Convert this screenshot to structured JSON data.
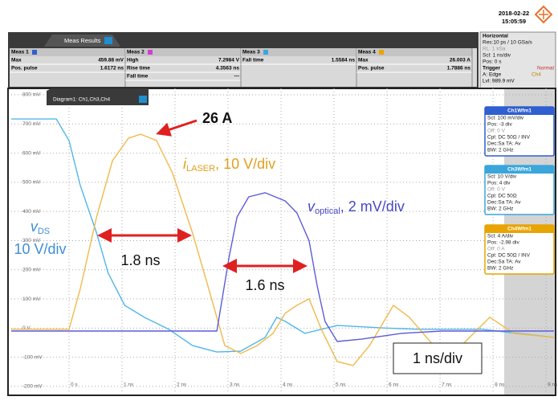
{
  "header": {
    "date": "2018-02-22",
    "time": "15:05:59"
  },
  "meas_results": {
    "tab": "Meas Results",
    "columns": [
      {
        "title": "Meas 1",
        "rows": [
          [
            "Max",
            "459.88 mV"
          ],
          [
            "Pos. pulse",
            "1.6172 ns"
          ]
        ]
      },
      {
        "title": "Meas 2",
        "rows": [
          [
            "High",
            "7.2984 V"
          ],
          [
            "Rise time",
            "4.3563 ns"
          ],
          [
            "Fall time",
            "---"
          ]
        ]
      },
      {
        "title": "Meas 3",
        "rows": [
          [
            "Fall time",
            "1.5584 ns"
          ]
        ]
      },
      {
        "title": "Meas 4",
        "rows": [
          [
            "Max",
            "26.003 A"
          ],
          [
            "Pos. pulse",
            "1.7886 ns"
          ]
        ]
      }
    ]
  },
  "horizontal": {
    "title": "Horizontal",
    "lines": [
      "Res:10 ps / 10 GSa/s",
      "RL: 1 kSa",
      "Scl: 1 ns/div",
      "Pos: 0 s"
    ],
    "trigger": "Trigger",
    "mode": "Normal",
    "edge": "A:  Edge",
    "source": "Ch4",
    "level": "Lvl: 989.9 mV"
  },
  "diagram_tab": "Diagram1: Ch1,Ch3,Ch4",
  "channels": [
    {
      "title": "Ch1Wfm1",
      "color": "#2f5fd0",
      "lines": [
        "Scl: 100 mV/div",
        "Pos: -3 div",
        "Off: 0 V",
        "Cpl: DC 50Ω / INV",
        "Dec:Sa    TA: Av",
        "BW: 2 GHz"
      ]
    },
    {
      "title": "Ch3Wfm1",
      "color": "#3aa6dc",
      "lines": [
        "Scl: 10 V/div",
        "Pos: 4 div",
        "Off: 0 V",
        "Cpl: DC 50Ω",
        "Dec:Sa    TA: Av",
        "BW: 2 GHz"
      ]
    },
    {
      "title": "Ch4Wfm1",
      "color": "#e8a400",
      "lines": [
        "Scl: 4 A/div",
        "Pos: -2.98 div",
        "Off: 0 A",
        "Cpl: DC 50Ω / INV",
        "Dec:Sa    TA: Av",
        "BW: 2 GHz"
      ]
    }
  ],
  "chart_data": {
    "type": "line",
    "xlim": [
      -1.09,
      9.15
    ],
    "ylim": [
      -225,
      822
    ],
    "xticks": [
      {
        "value": 0,
        "label": "0 s"
      },
      {
        "value": 1,
        "label": "1 ns"
      },
      {
        "value": 2,
        "label": "2 ns"
      },
      {
        "value": 3,
        "label": "3 ns"
      },
      {
        "value": 4,
        "label": "4 ns"
      },
      {
        "value": 5,
        "label": "5 ns"
      },
      {
        "value": 6,
        "label": "6 ns"
      },
      {
        "value": 7,
        "label": "7 ns"
      },
      {
        "value": 8,
        "label": "8 ns"
      },
      {
        "value": 9,
        "label": "9 ns"
      }
    ],
    "yticks": [
      {
        "value": 800,
        "label": "800 mV"
      },
      {
        "value": 700,
        "label": "700 mV"
      },
      {
        "value": 600,
        "label": "600 mV"
      },
      {
        "value": 500,
        "label": "500 mV"
      },
      {
        "value": 400,
        "label": "400 mV"
      },
      {
        "value": 300,
        "label": "300 mV"
      },
      {
        "value": 200,
        "label": "200 mV"
      },
      {
        "value": 100,
        "label": "100 mV"
      },
      {
        "value": 0,
        "label": "0 V"
      },
      {
        "value": -100,
        "label": "-100 mV"
      },
      {
        "value": -200,
        "label": "-200 mV"
      }
    ],
    "grid": true,
    "series": [
      {
        "name": "Ch3Wfm1",
        "color": "#52b6ea",
        "x": [
          -1.09,
          -0.24,
          0,
          0.21,
          0.52,
          0.74,
          1.05,
          1.42,
          1.88,
          2.33,
          2.79,
          3.24,
          3.7,
          3.92,
          4.08,
          4.45,
          5.06,
          5.97,
          6.58,
          7.79,
          9.15
        ],
        "values": [
          717,
          717,
          643,
          491,
          326,
          188,
          78,
          37,
          -4,
          -60,
          -82,
          -79,
          -32,
          37,
          23,
          -18,
          9,
          0,
          -4,
          -4,
          -32
        ]
      },
      {
        "name": "Ch4Wfm1",
        "color": "#f0b94a",
        "x": [
          -1.09,
          0,
          0.21,
          0.52,
          0.82,
          1.12,
          1.35,
          1.65,
          1.95,
          2.33,
          2.64,
          2.94,
          3.24,
          3.55,
          3.85,
          4.08,
          4.3,
          4.53,
          4.76,
          5.06,
          5.36,
          5.67,
          6.12,
          6.42,
          6.88,
          7.33,
          7.94,
          8.39,
          9.15
        ],
        "values": [
          -4,
          -4,
          133,
          381,
          574,
          651,
          665,
          643,
          533,
          326,
          133,
          -60,
          -87,
          -60,
          -18,
          51,
          78,
          100,
          -4,
          -115,
          -128,
          -60,
          78,
          37,
          -60,
          -73,
          37,
          -18,
          -32
        ]
      },
      {
        "name": "Ch1Wfm1",
        "color": "#5c5cd8",
        "x": [
          -1.09,
          2.79,
          3.02,
          3.17,
          3.39,
          3.7,
          4.08,
          4.3,
          4.53,
          4.68,
          4.83,
          5.06,
          5.52,
          6.27,
          7.03,
          9.15
        ],
        "values": [
          -10,
          -10,
          243,
          381,
          450,
          464,
          436,
          395,
          299,
          147,
          23,
          -46,
          -38,
          -18,
          -10,
          -10
        ]
      }
    ],
    "annotations": [
      {
        "text": "26 A"
      },
      {
        "main": "i",
        "sub": "LASER",
        "rest": ", 10 V/div"
      },
      {
        "main": "v",
        "sub": "DS",
        "rest": "10 V/div"
      },
      {
        "main": "v",
        "sub": "optical",
        "rest": ", 2 mV/div"
      },
      {
        "text": "1.8 ns"
      },
      {
        "text": "1.6 ns"
      },
      {
        "text": "1 ns/div"
      }
    ]
  }
}
